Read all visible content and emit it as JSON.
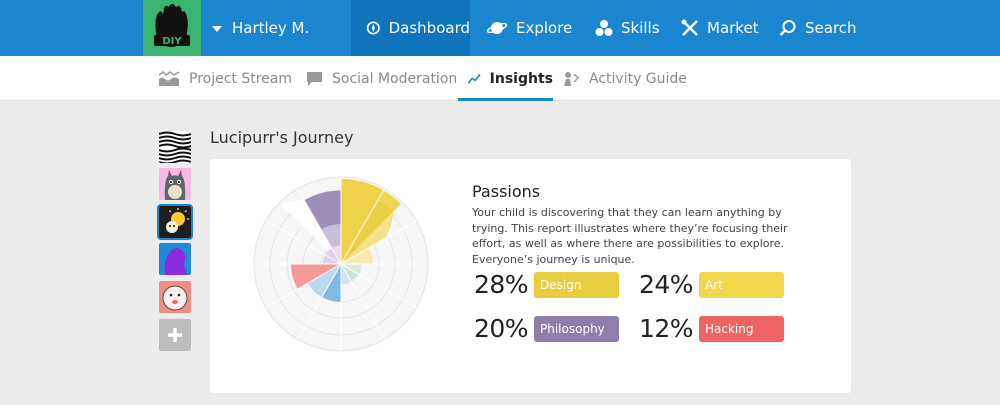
{
  "header": {
    "user_name": "Hartley M.",
    "nav": {
      "dashboard": "Dashboard",
      "explore": "Explore",
      "skills": "Skills",
      "market": "Market",
      "search": "Search"
    }
  },
  "subnav": {
    "project_stream": "Project Stream",
    "social_moderation": "Social Moderation",
    "insights": "Insights",
    "activity_guide": "Activity Guide"
  },
  "journey": {
    "title": "Lucipurr's Journey"
  },
  "passions": {
    "title": "Passions",
    "description": "Your child is discovering that they can learn anything by trying. This report illustrates where they’re focusing their effort, as well as where there are possibilities to explore. Everyone’s journey is unique.",
    "stats": [
      {
        "percent": "28%",
        "label": "Design",
        "color": "#e8ce3f"
      },
      {
        "percent": "24%",
        "label": "Art",
        "color": "#f2d74c"
      },
      {
        "percent": "20%",
        "label": "Philosophy",
        "color": "#8f7eaa"
      },
      {
        "percent": "12%",
        "label": "Hacking",
        "color": "#f06363"
      }
    ]
  },
  "colors": {
    "nav_blue": "#1a86d0",
    "nav_active": "#0e74bb",
    "logo_green": "#3ab36f"
  }
}
